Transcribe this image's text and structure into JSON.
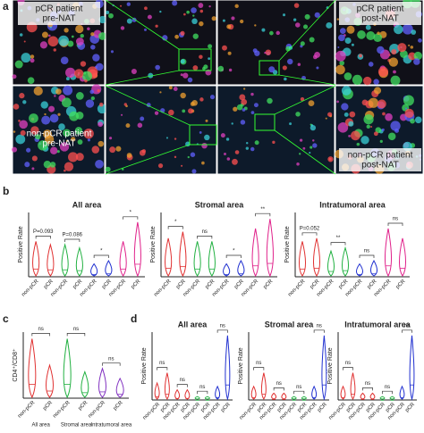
{
  "panel_a": {
    "label": "a",
    "captions": [
      [
        "pCR patient",
        "pre-NAT"
      ],
      [
        "pCR patient",
        "post-NAT"
      ],
      [
        "non-pCR patient",
        "pre-NAT"
      ],
      [
        "non-pCR patient",
        "post-NAT"
      ]
    ]
  },
  "panel_b": {
    "label": "b",
    "y_label": "Positive Rate",
    "plots": [
      {
        "title": "All area",
        "categories": [
          "non-pCR",
          "pCR",
          "non-pCR",
          "pCR",
          "non-pCR",
          "pCR",
          "non-pCR",
          "pCR"
        ],
        "annotations": [
          "P=0.093",
          "P=0.086",
          "*",
          "*"
        ]
      },
      {
        "title": "Stromal area",
        "categories": [
          "non-pCR",
          "pCR",
          "non-pCR",
          "pCR",
          "non-pCR",
          "pCR",
          "non-pCR",
          "pCR"
        ],
        "annotations": [
          "*",
          "ns",
          "*",
          "**"
        ]
      },
      {
        "title": "Intratumoral area",
        "categories": [
          "non-pCR",
          "pCR",
          "non-pCR",
          "pCR",
          "non-pCR",
          "pCR",
          "non-pCR",
          "pCR"
        ],
        "annotations": [
          "P=0.052",
          "**",
          "ns",
          "ns"
        ]
      }
    ]
  },
  "panel_c": {
    "label": "c",
    "y_label": "CD4⁺/CD8⁺",
    "categories": [
      "non-pCR",
      "pCR",
      "non-pCR",
      "pCR",
      "non-pCR",
      "pCR"
    ],
    "groups": [
      "All area",
      "Stromal area",
      "Intratumoral area"
    ],
    "annotations": [
      "ns",
      "ns",
      "ns"
    ]
  },
  "panel_d": {
    "label": "d",
    "y_label": "Positive Rate",
    "plots": [
      {
        "title": "All area",
        "categories": [
          "non-pCR",
          "pCR",
          "non-pCR",
          "pCR",
          "non-pCR",
          "pCR",
          "non-pCR",
          "pCR"
        ],
        "annotations": [
          "ns",
          "ns",
          "ns",
          "ns"
        ]
      },
      {
        "title": "Stromal area",
        "categories": [
          "non-pCR",
          "pCR",
          "non-pCR",
          "pCR",
          "non-pCR",
          "pCR",
          "non-pCR",
          "pCR"
        ],
        "annotations": [
          "ns",
          "ns",
          "ns",
          "ns"
        ]
      },
      {
        "title": "Intratumoral area",
        "categories": [
          "non-pCR",
          "pCR",
          "non-pCR",
          "pCR",
          "non-pCR",
          "pCR",
          "non-pCR",
          "pCR"
        ],
        "annotations": [
          "ns",
          "ns",
          "ns",
          "ns"
        ]
      }
    ]
  }
}
